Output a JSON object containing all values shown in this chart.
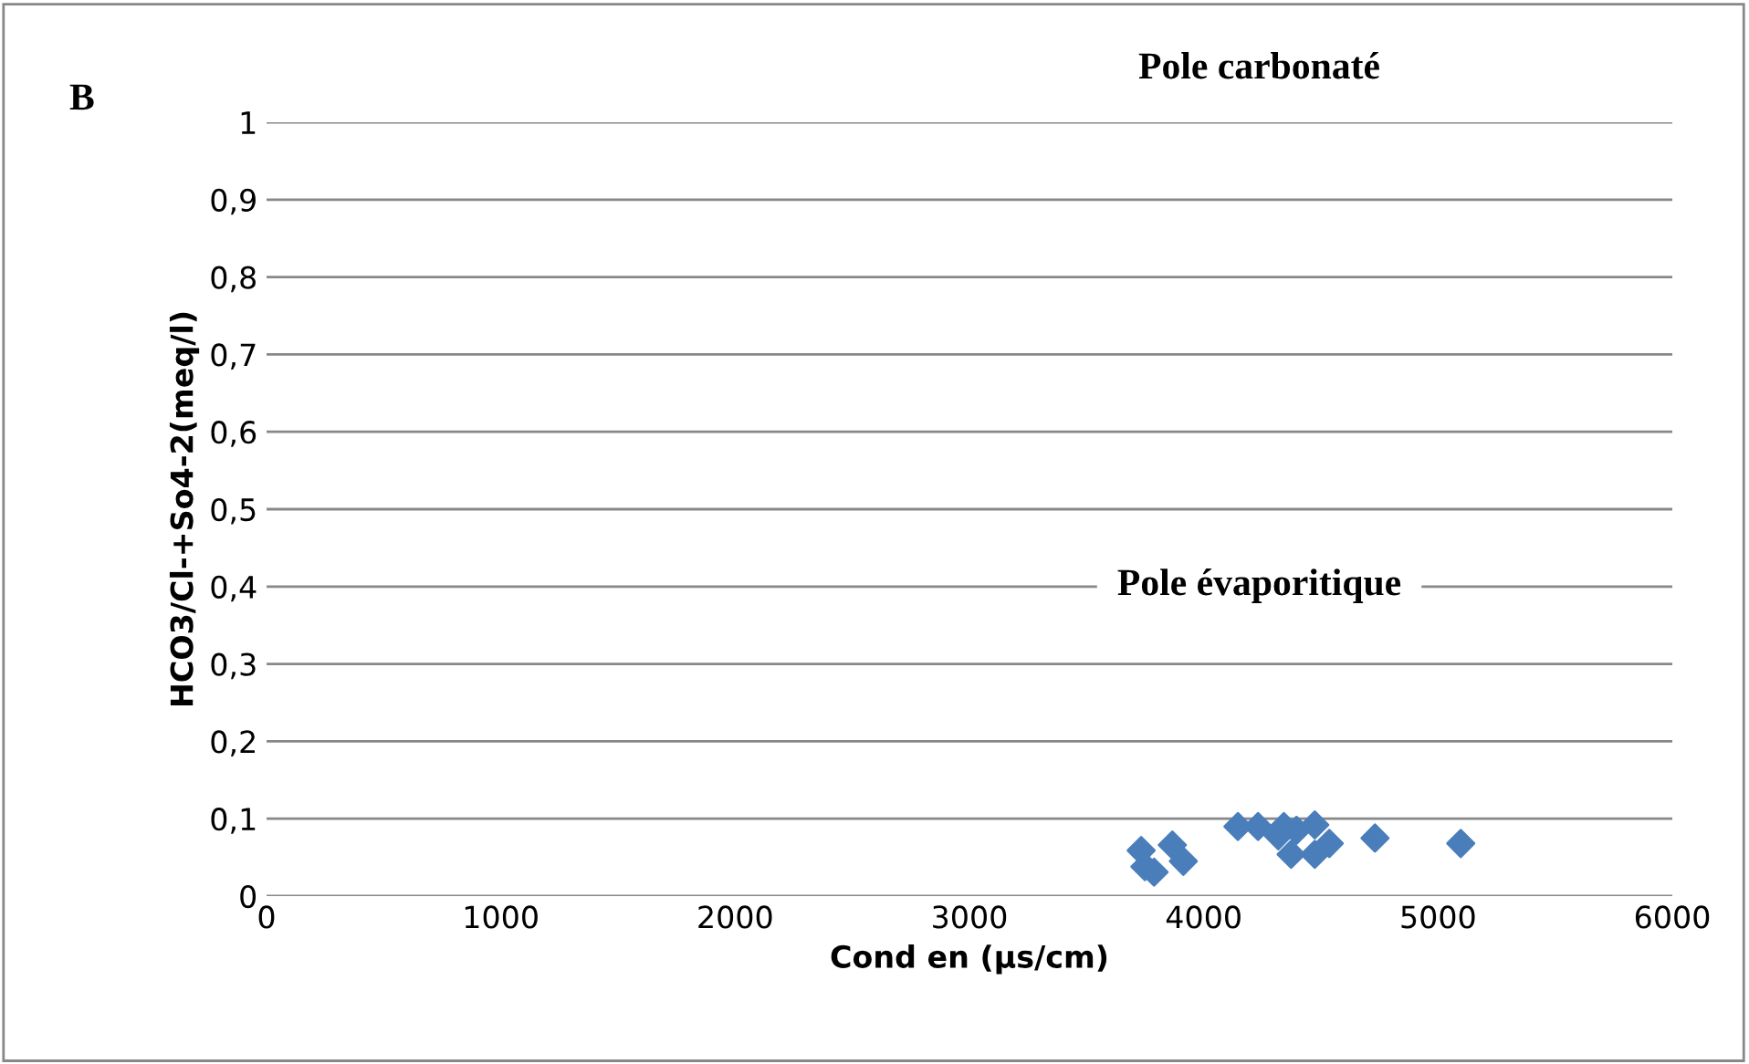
{
  "chart_data": {
    "type": "scatter",
    "xlabel": "Cond en (µs/cm)",
    "ylabel": "HCO3/Cl-+So4-2(meq/l)",
    "annotations": [
      "B",
      "Pole carbonaté",
      "Pole évaporitique"
    ],
    "x": [
      3733,
      3749,
      3788,
      3866,
      3913,
      4146,
      4232,
      4318,
      4342,
      4373,
      4396,
      4474,
      4474,
      4536,
      4731,
      5097
    ],
    "series": [
      {
        "color": "#4a7ebb",
        "values": [
          0.059,
          0.038,
          0.031,
          0.066,
          0.045,
          0.09,
          0.09,
          0.078,
          0.09,
          0.054,
          0.085,
          0.092,
          0.054,
          0.068,
          0.075,
          0.068
        ]
      }
    ],
    "xlim": [
      0,
      6000
    ],
    "xticks": [
      0,
      1000,
      2000,
      3000,
      4000,
      5000,
      6000
    ],
    "ylim": [
      0,
      1
    ],
    "yticks": [
      {
        "value": 0,
        "label": "0"
      },
      {
        "value": 0.1,
        "label": "0,1"
      },
      {
        "value": 0.2,
        "label": "0,2"
      },
      {
        "value": 0.3,
        "label": "0,3"
      },
      {
        "value": 0.4,
        "label": "0,4"
      },
      {
        "value": 0.5,
        "label": "0,5"
      },
      {
        "value": 0.6,
        "label": "0,6"
      },
      {
        "value": 0.7,
        "label": "0,7"
      },
      {
        "value": 0.8,
        "label": "0,8"
      },
      {
        "value": 0.9,
        "label": "0,9"
      },
      {
        "value": 1,
        "label": "1"
      }
    ],
    "grid": "y",
    "marker": "diamond",
    "legend": false
  }
}
